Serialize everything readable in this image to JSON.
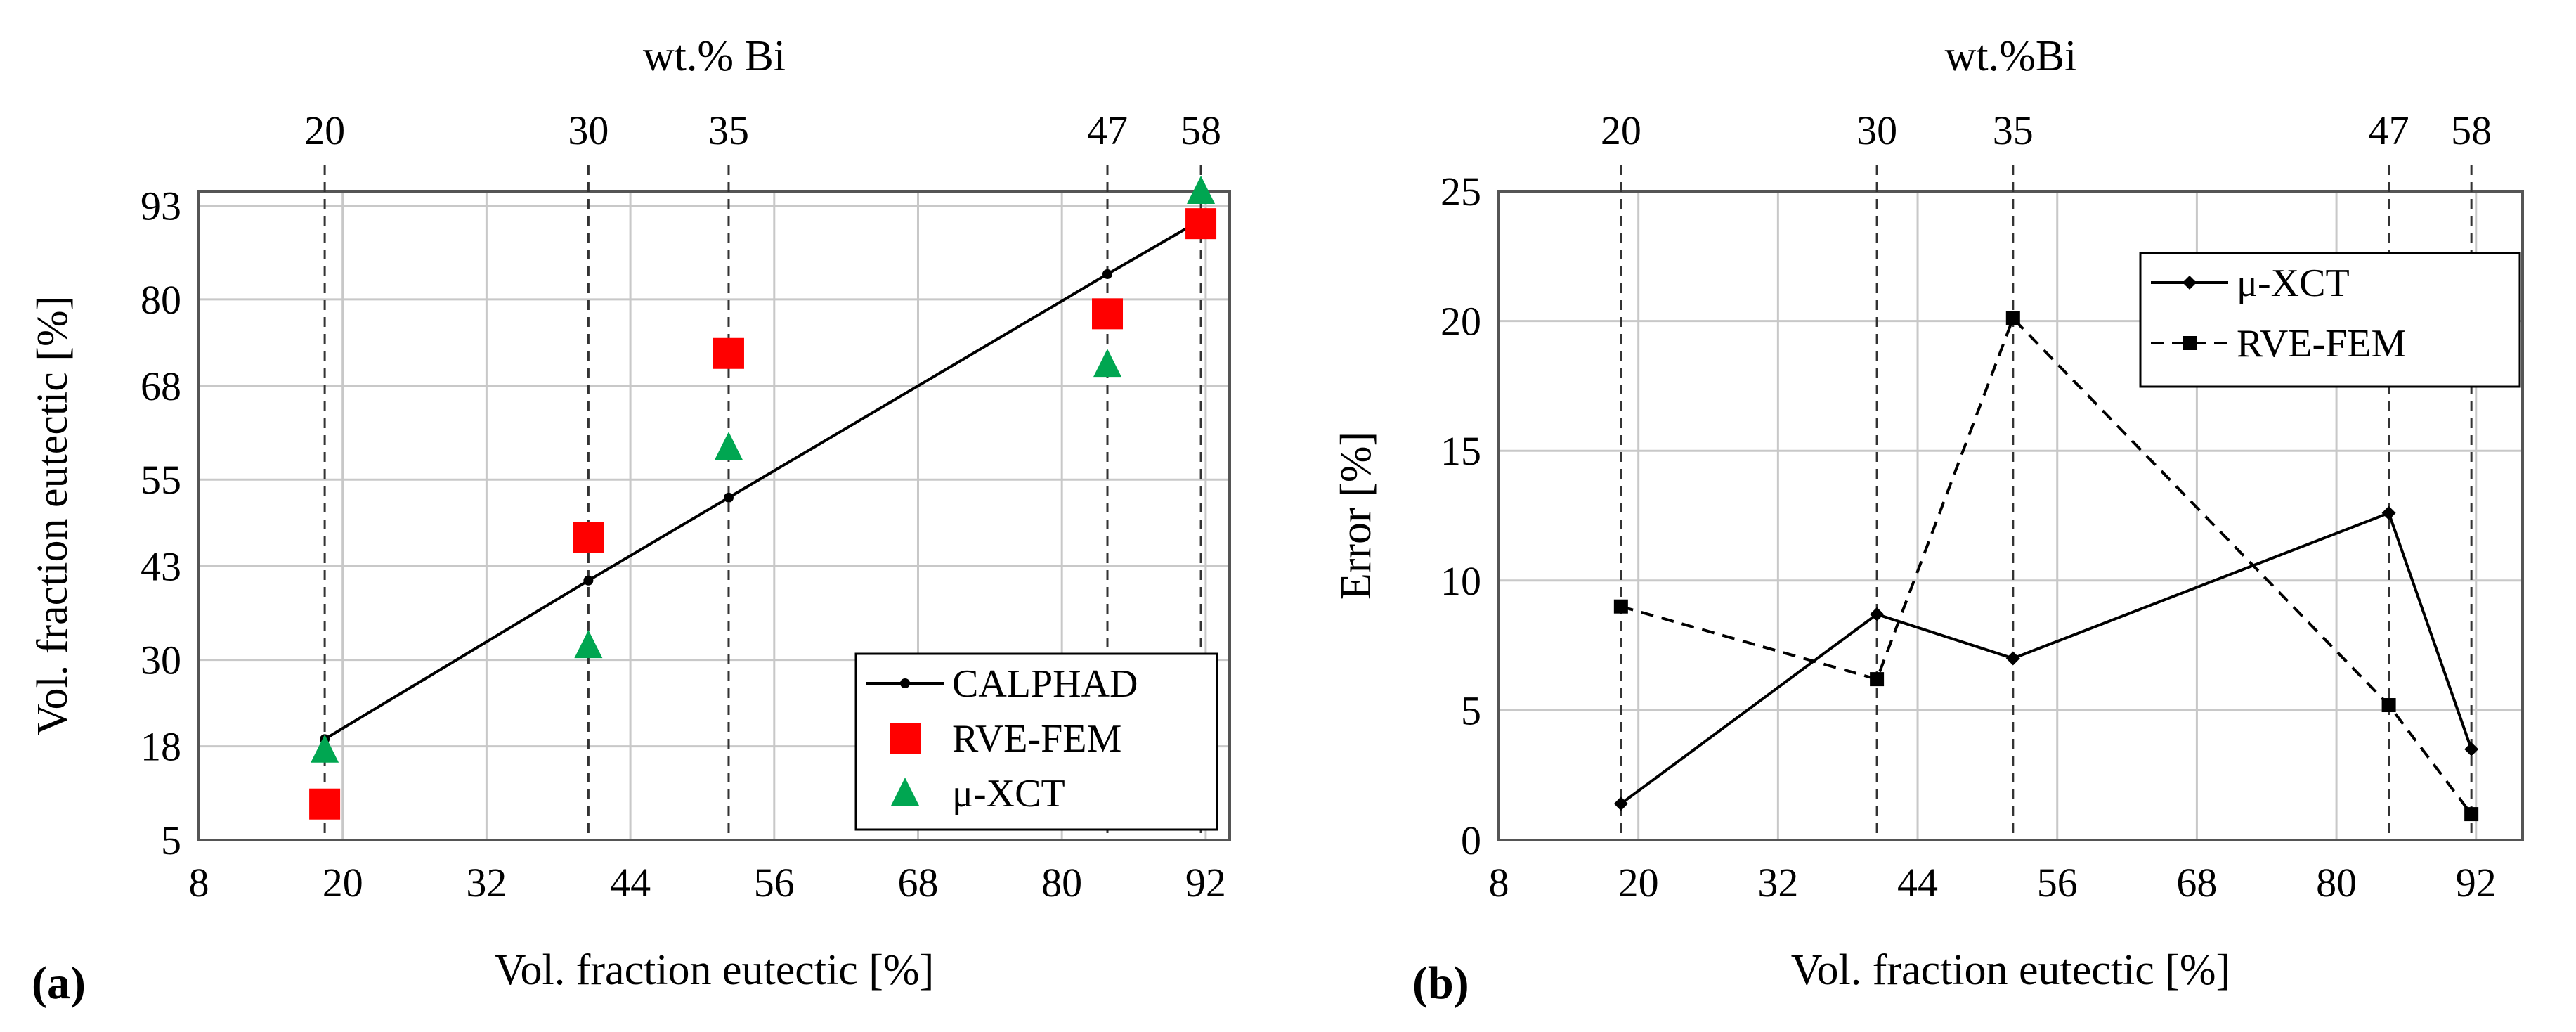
{
  "chart_data": [
    {
      "type": "line",
      "panel_label": "(a)",
      "title": "",
      "xlabel": "Vol. fraction eutectic [%]",
      "ylabel": "Vol. fraction eutectic [%]",
      "top_axis_label": "wt.% Bi",
      "xlim": [
        8,
        94
      ],
      "ylim": [
        5,
        95
      ],
      "x_ticks": [
        8,
        20,
        32,
        44,
        56,
        68,
        80,
        92
      ],
      "x_tick_labels": [
        "8",
        "20",
        "32",
        "44",
        "56",
        "68",
        "80",
        "92"
      ],
      "y_ticks": [
        5,
        18,
        30,
        43,
        55,
        68,
        80,
        93
      ],
      "y_tick_labels": [
        "5",
        "18",
        "30",
        "43",
        "55",
        "68",
        "80",
        "93"
      ],
      "top_ticks": [
        {
          "x": 18.5,
          "label": "20"
        },
        {
          "x": 40.5,
          "label": "30"
        },
        {
          "x": 52.2,
          "label": "35"
        },
        {
          "x": 83.8,
          "label": "47"
        },
        {
          "x": 91.6,
          "label": "58"
        }
      ],
      "grid": true,
      "legend_position": "bottom-right",
      "series": [
        {
          "name": "CALPHAD",
          "style": "line-dot",
          "color": "#000000",
          "points": [
            [
              18.5,
              19
            ],
            [
              40.5,
              41
            ],
            [
              52.2,
              52.5
            ],
            [
              83.8,
              83.5
            ],
            [
              91.6,
              91
            ]
          ]
        },
        {
          "name": "RVE-FEM",
          "style": "square",
          "color": "#ff0000",
          "points": [
            [
              18.5,
              10
            ],
            [
              40.5,
              47
            ],
            [
              52.2,
              72.5
            ],
            [
              83.8,
              78
            ],
            [
              91.6,
              90.5
            ]
          ]
        },
        {
          "name": "μ-XCT",
          "style": "triangle",
          "color": "#00a651",
          "points": [
            [
              18.5,
              17.5
            ],
            [
              40.5,
              32
            ],
            [
              52.2,
              59.5
            ],
            [
              83.8,
              71
            ],
            [
              91.6,
              95
            ]
          ]
        }
      ]
    },
    {
      "type": "line",
      "panel_label": "(b)",
      "title": "",
      "xlabel": "Vol. fraction eutectic [%]",
      "ylabel": "Error [%]",
      "top_axis_label": "wt.%Bi",
      "xlim": [
        8,
        96
      ],
      "ylim": [
        0,
        25
      ],
      "x_ticks": [
        8,
        20,
        32,
        44,
        56,
        68,
        80,
        92
      ],
      "x_tick_labels": [
        "8",
        "20",
        "32",
        "44",
        "56",
        "68",
        "80",
        "92"
      ],
      "y_ticks": [
        0,
        5,
        10,
        15,
        20,
        25
      ],
      "y_tick_labels": [
        "0",
        "5",
        "10",
        "15",
        "20",
        "25"
      ],
      "top_ticks": [
        {
          "x": 18.5,
          "label": "20"
        },
        {
          "x": 40.5,
          "label": "30"
        },
        {
          "x": 52.2,
          "label": "35"
        },
        {
          "x": 84.5,
          "label": "47"
        },
        {
          "x": 91.6,
          "label": "58"
        }
      ],
      "grid": true,
      "legend_position": "top-right",
      "series": [
        {
          "name": "μ-XCT",
          "style": "line-diamond",
          "color": "#000000",
          "points": [
            [
              18.5,
              1.4
            ],
            [
              40.5,
              8.7
            ],
            [
              52.2,
              7.0
            ],
            [
              84.5,
              12.6
            ],
            [
              91.6,
              3.5
            ]
          ]
        },
        {
          "name": "RVE-FEM",
          "style": "dashed-square",
          "color": "#000000",
          "points": [
            [
              18.5,
              9.0
            ],
            [
              40.5,
              6.2
            ],
            [
              52.2,
              20.1
            ],
            [
              84.5,
              5.2
            ],
            [
              91.6,
              1.0
            ]
          ]
        }
      ]
    }
  ]
}
